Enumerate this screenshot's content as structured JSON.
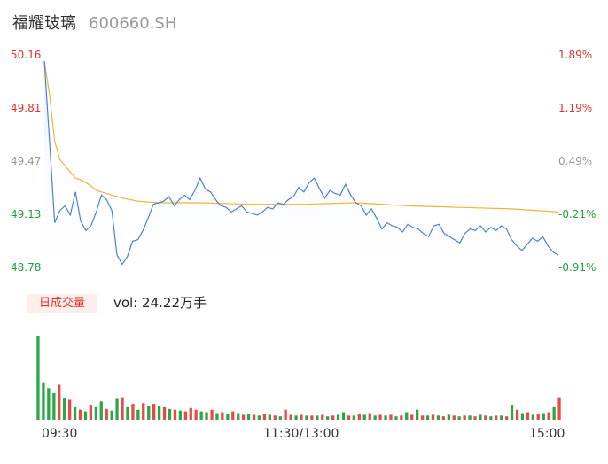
{
  "header": {
    "stock_name": "福耀玻璃",
    "stock_code": "600660.SH"
  },
  "volume_panel": {
    "label": "日成交量",
    "summary": "vol: 24.22万手"
  },
  "colors": {
    "price_line": "#4a7fe0",
    "avg_line": "#f0b23c",
    "fill_top": "#e8effc",
    "up": "#e0302b",
    "down": "#1e9e3c",
    "flat_label": "#999999",
    "up_bar": "#e84a4a",
    "down_bar": "#2aa845"
  },
  "chart_data": [
    {
      "type": "line",
      "title": "",
      "y_axis_left": [
        "50.16",
        "49.81",
        "49.47",
        "49.13",
        "48.78"
      ],
      "y_axis_right": [
        "1.89%",
        "1.19%",
        "0.49%",
        "-0.21%",
        "-0.91%"
      ],
      "ylim": [
        48.78,
        50.16
      ],
      "x_axis": [
        "09:30",
        "11:30/13:00",
        "15:00"
      ],
      "series": [
        {
          "type": "price",
          "points": [
            [
              0,
              50.12
            ],
            [
              1,
              49.6
            ],
            [
              2,
              49.07
            ],
            [
              3,
              49.15
            ],
            [
              4,
              49.18
            ],
            [
              5,
              49.12
            ],
            [
              6,
              49.27
            ],
            [
              7,
              49.08
            ],
            [
              8,
              49.02
            ],
            [
              9,
              49.05
            ],
            [
              10,
              49.14
            ],
            [
              11,
              49.25
            ],
            [
              12,
              49.22
            ],
            [
              13,
              49.15
            ],
            [
              14,
              48.86
            ],
            [
              15,
              48.8
            ],
            [
              16,
              48.85
            ],
            [
              17,
              48.95
            ],
            [
              18,
              48.96
            ],
            [
              19,
              49.02
            ],
            [
              20,
              49.1
            ],
            [
              21,
              49.19
            ],
            [
              22,
              49.2
            ],
            [
              23,
              49.21
            ],
            [
              24,
              49.24
            ],
            [
              25,
              49.18
            ],
            [
              26,
              49.22
            ],
            [
              27,
              49.25
            ],
            [
              28,
              49.22
            ],
            [
              29,
              49.28
            ],
            [
              30,
              49.36
            ],
            [
              31,
              49.29
            ],
            [
              32,
              49.27
            ],
            [
              33,
              49.22
            ],
            [
              34,
              49.18
            ],
            [
              35,
              49.17
            ],
            [
              36,
              49.14
            ],
            [
              37,
              49.16
            ],
            [
              38,
              49.18
            ],
            [
              39,
              49.14
            ],
            [
              40,
              49.13
            ],
            [
              41,
              49.12
            ],
            [
              42,
              49.14
            ],
            [
              43,
              49.17
            ],
            [
              44,
              49.16
            ],
            [
              45,
              49.2
            ],
            [
              46,
              49.19
            ],
            [
              47,
              49.22
            ],
            [
              48,
              49.24
            ],
            [
              49,
              49.3
            ],
            [
              50,
              49.27
            ],
            [
              51,
              49.33
            ],
            [
              52,
              49.36
            ],
            [
              53,
              49.29
            ],
            [
              54,
              49.23
            ],
            [
              55,
              49.28
            ],
            [
              56,
              49.26
            ],
            [
              57,
              49.25
            ],
            [
              58,
              49.32
            ],
            [
              59,
              49.25
            ],
            [
              60,
              49.2
            ],
            [
              61,
              49.18
            ],
            [
              62,
              49.12
            ],
            [
              63,
              49.16
            ],
            [
              64,
              49.1
            ],
            [
              65,
              49.03
            ],
            [
              66,
              49.07
            ],
            [
              67,
              49.05
            ],
            [
              68,
              49.04
            ],
            [
              69,
              49.01
            ],
            [
              70,
              49.06
            ],
            [
              71,
              49.04
            ],
            [
              72,
              49.03
            ],
            [
              73,
              49.0
            ],
            [
              74,
              48.98
            ],
            [
              75,
              49.05
            ],
            [
              76,
              49.06
            ],
            [
              77,
              49.0
            ],
            [
              78,
              48.98
            ],
            [
              79,
              48.96
            ],
            [
              80,
              48.94
            ],
            [
              81,
              49.0
            ],
            [
              82,
              49.03
            ],
            [
              83,
              49.02
            ],
            [
              84,
              49.05
            ],
            [
              85,
              49.01
            ],
            [
              86,
              49.04
            ],
            [
              87,
              49.02
            ],
            [
              88,
              49.05
            ],
            [
              89,
              49.03
            ],
            [
              90,
              48.96
            ],
            [
              91,
              48.92
            ],
            [
              92,
              48.89
            ],
            [
              93,
              48.93
            ],
            [
              94,
              48.97
            ],
            [
              95,
              48.95
            ],
            [
              96,
              48.98
            ],
            [
              97,
              48.92
            ],
            [
              98,
              48.88
            ],
            [
              99,
              48.86
            ]
          ]
        },
        {
          "type": "average",
          "points": [
            [
              0,
              50.12
            ],
            [
              1,
              49.9
            ],
            [
              2,
              49.6
            ],
            [
              3,
              49.48
            ],
            [
              4,
              49.44
            ],
            [
              5,
              49.4
            ],
            [
              6,
              49.36
            ],
            [
              7,
              49.35
            ],
            [
              8,
              49.33
            ],
            [
              9,
              49.31
            ],
            [
              10,
              49.28
            ],
            [
              11,
              49.27
            ],
            [
              12,
              49.26
            ],
            [
              13,
              49.25
            ],
            [
              14,
              49.24
            ],
            [
              15,
              49.23
            ],
            [
              18,
              49.21
            ],
            [
              22,
              49.2
            ],
            [
              30,
              49.2
            ],
            [
              40,
              49.19
            ],
            [
              50,
              49.19
            ],
            [
              55,
              49.195
            ],
            [
              60,
              49.2
            ],
            [
              70,
              49.18
            ],
            [
              80,
              49.17
            ],
            [
              90,
              49.16
            ],
            [
              99,
              49.14
            ]
          ]
        }
      ]
    },
    {
      "type": "bar",
      "title": "日成交量",
      "ylim": [
        0,
        100
      ],
      "values": [
        100,
        45,
        38,
        32,
        42,
        26,
        24,
        15,
        12,
        10,
        18,
        15,
        22,
        13,
        11,
        25,
        27,
        15,
        19,
        12,
        20,
        17,
        19,
        17,
        15,
        13,
        12,
        11,
        10,
        14,
        12,
        10,
        9,
        12,
        8,
        9,
        7,
        10,
        8,
        6,
        7,
        6,
        5,
        7,
        6,
        5,
        4,
        12,
        6,
        5,
        6,
        5,
        5,
        5,
        6,
        4,
        5,
        6,
        9,
        5,
        5,
        7,
        6,
        8,
        5,
        6,
        5,
        6,
        4,
        5,
        9,
        6,
        12,
        5,
        5,
        6,
        5,
        4,
        6,
        5,
        4,
        5,
        5,
        4,
        6,
        5,
        4,
        5,
        5,
        4,
        18,
        12,
        8,
        9,
        6,
        7,
        8,
        9,
        15,
        27
      ],
      "directions": [
        "d",
        "d",
        "d",
        "d",
        "u",
        "d",
        "u",
        "d",
        "u",
        "d",
        "u",
        "d",
        "d",
        "u",
        "d",
        "d",
        "u",
        "d",
        "u",
        "d",
        "u",
        "d",
        "u",
        "d",
        "u",
        "d",
        "u",
        "d",
        "u",
        "u",
        "u",
        "d",
        "d",
        "u",
        "d",
        "u",
        "d",
        "u",
        "d",
        "u",
        "d",
        "u",
        "d",
        "u",
        "d",
        "u",
        "d",
        "u",
        "u",
        "d",
        "u",
        "d",
        "u",
        "d",
        "u",
        "d",
        "u",
        "d",
        "d",
        "u",
        "d",
        "u",
        "d",
        "u",
        "d",
        "u",
        "d",
        "u",
        "d",
        "u",
        "d",
        "u",
        "d",
        "u",
        "d",
        "u",
        "d",
        "u",
        "d",
        "u",
        "d",
        "u",
        "d",
        "u",
        "d",
        "u",
        "d",
        "u",
        "d",
        "u",
        "d",
        "u",
        "d",
        "u",
        "d",
        "u",
        "d",
        "u",
        "d",
        "u"
      ]
    }
  ]
}
